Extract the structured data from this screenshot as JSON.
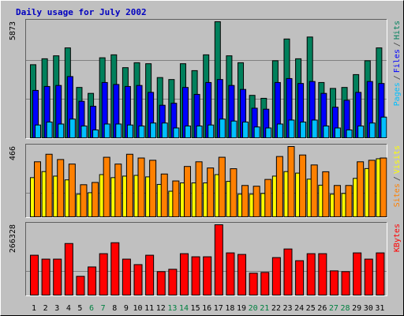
{
  "title": "Daily usage for July 2002",
  "legend_separator": "/",
  "chart_data": [
    {
      "type": "bar",
      "ylim": [
        0,
        5873
      ],
      "yticks": [
        5873
      ],
      "gridlines": [
        1958,
        3915
      ],
      "series": [
        {
          "name": "Pages",
          "color": "#00c0ff",
          "values": [
            650,
            800,
            700,
            950,
            600,
            400,
            700,
            700,
            650,
            600,
            750,
            750,
            500,
            600,
            600,
            650,
            950,
            850,
            800,
            550,
            500,
            700,
            900,
            800,
            900,
            600,
            500,
            400,
            600,
            750,
            1050
          ]
        },
        {
          "name": "Files",
          "color": "#0000ff",
          "values": [
            2400,
            2600,
            2650,
            3100,
            1850,
            1600,
            2800,
            2700,
            2600,
            2650,
            2300,
            1650,
            1750,
            2550,
            2200,
            2800,
            2950,
            2650,
            2450,
            1500,
            1450,
            2800,
            3000,
            2750,
            2850,
            2250,
            1550,
            1900,
            2300,
            2850,
            2750
          ]
        },
        {
          "name": "Hits",
          "color": "#00805c",
          "values": [
            3700,
            4000,
            4150,
            4550,
            2550,
            2250,
            4050,
            4200,
            3550,
            3800,
            3750,
            3050,
            2950,
            3750,
            3400,
            4200,
            5873,
            4150,
            3800,
            2150,
            2000,
            3900,
            5000,
            4000,
            5100,
            2800,
            2500,
            2550,
            3200,
            3900,
            4550
          ]
        }
      ]
    },
    {
      "type": "bar",
      "ylim": [
        0,
        466
      ],
      "yticks": [
        466
      ],
      "gridlines": [
        155
      ],
      "series": [
        {
          "name": "Sites",
          "color": "#ff8000",
          "values": [
            365,
            415,
            380,
            350,
            213,
            228,
            395,
            350,
            415,
            390,
            375,
            284,
            238,
            334,
            365,
            324,
            395,
            319,
            208,
            203,
            248,
            400,
            466,
            410,
            344,
            299,
            208,
            208,
            365,
            375,
            390
          ]
        },
        {
          "name": "Visits",
          "color": "#ffff00",
          "values": [
            260,
            300,
            270,
            245,
            150,
            160,
            280,
            260,
            270,
            275,
            265,
            215,
            170,
            225,
            225,
            225,
            280,
            235,
            150,
            150,
            155,
            270,
            300,
            290,
            250,
            210,
            150,
            155,
            255,
            320,
            385
          ]
        }
      ]
    },
    {
      "type": "bar",
      "ylim": [
        0,
        266328
      ],
      "yticks": [
        266328
      ],
      "gridlines": [
        88800
      ],
      "categories": [
        "1",
        "2",
        "3",
        "4",
        "5",
        "6",
        "7",
        "8",
        "9",
        "10",
        "11",
        "12",
        "13",
        "14",
        "15",
        "16",
        "17",
        "18",
        "19",
        "20",
        "21",
        "22",
        "23",
        "24",
        "25",
        "26",
        "27",
        "28",
        "29",
        "30",
        "31"
      ],
      "category_colors": [
        "#000",
        "#000",
        "#000",
        "#000",
        "#000",
        "#008040",
        "#008040",
        "#000",
        "#000",
        "#000",
        "#000",
        "#000",
        "#008040",
        "#008040",
        "#000",
        "#000",
        "#000",
        "#000",
        "#000",
        "#008040",
        "#008040",
        "#000",
        "#000",
        "#000",
        "#000",
        "#000",
        "#008040",
        "#008040",
        "#000",
        "#000",
        "#000"
      ],
      "series": [
        {
          "name": "KBytes",
          "color": "#ff0000",
          "values": [
            150900,
            136100,
            136100,
            195300,
            71000,
            106500,
            156800,
            198300,
            136100,
            115400,
            150900,
            88800,
            97700,
            156800,
            145000,
            145000,
            266328,
            159800,
            153900,
            82900,
            85800,
            142000,
            174600,
            130200,
            156800,
            156800,
            91700,
            88800,
            159800,
            136100,
            159800
          ]
        }
      ]
    }
  ]
}
